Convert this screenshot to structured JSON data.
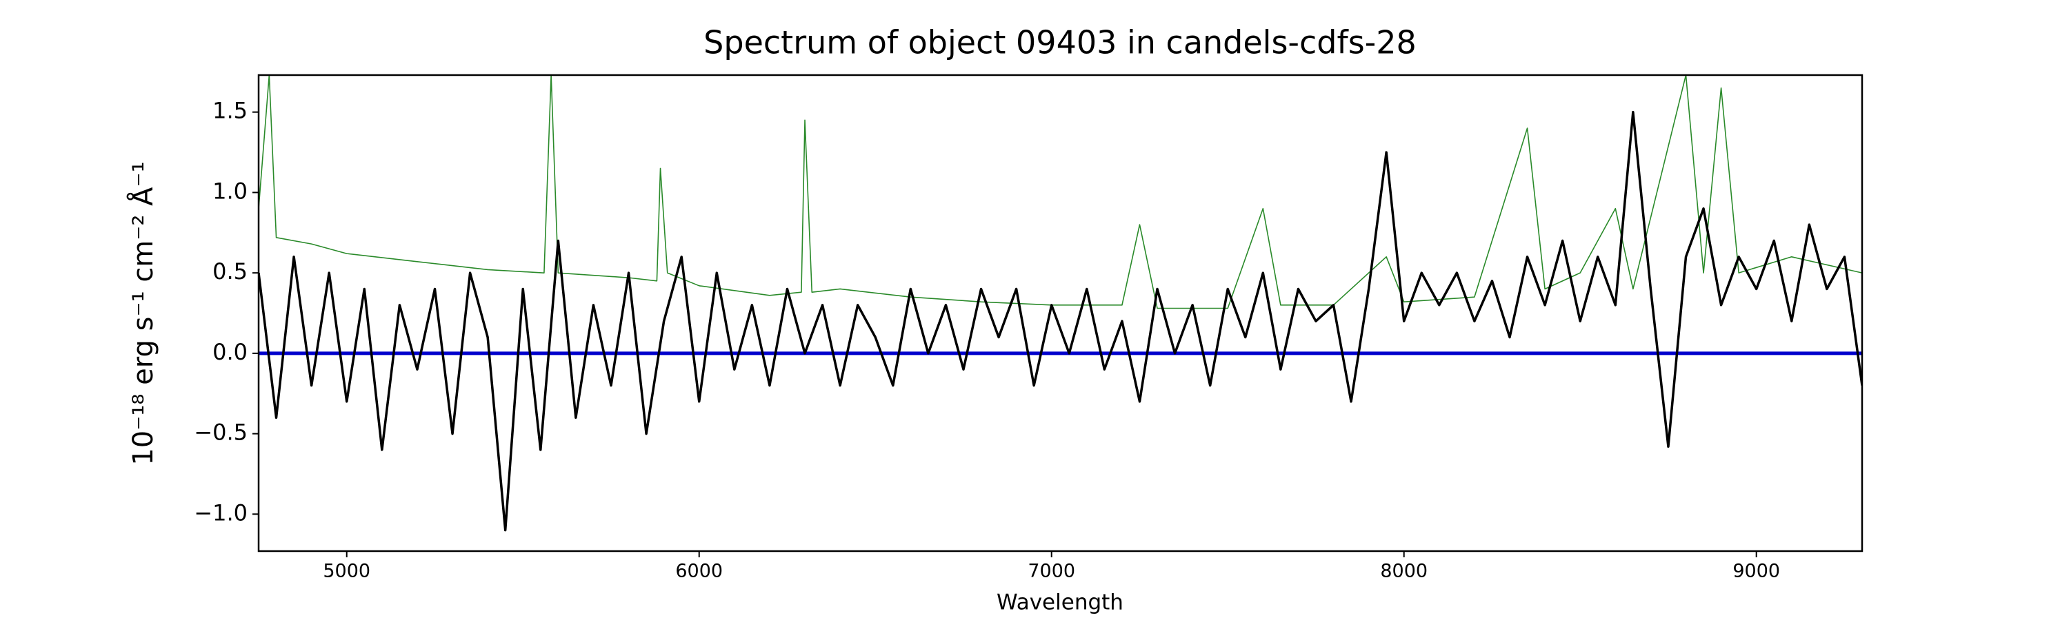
{
  "chart_data": {
    "type": "line",
    "title": "Spectrum of object 09403 in candels-cdfs-28",
    "x_label": "Wavelength",
    "y_label": "10⁻¹⁸ erg s⁻¹ cm⁻² Å⁻¹",
    "xlim": [
      4750,
      9300
    ],
    "ylim": [
      -1.23,
      1.73
    ],
    "xticks": [
      5000,
      6000,
      7000,
      8000,
      9000
    ],
    "yticks": [
      {
        "value": -1.0,
        "label": "−1.0"
      },
      {
        "value": -0.5,
        "label": "−0.5"
      },
      {
        "value": 0.0,
        "label": "0.0"
      },
      0.5,
      {
        "value": 1.0,
        "label": "1.0"
      },
      1.5
    ],
    "series": [
      {
        "color": "#2a8a2a",
        "width": 1.6,
        "x": [
          4750,
          4780,
          4800,
          4900,
          5000,
          5200,
          5400,
          5560,
          5580,
          5600,
          5800,
          5880,
          5890,
          5910,
          6000,
          6200,
          6290,
          6300,
          6320,
          6400,
          6600,
          6800,
          7000,
          7200,
          7250,
          7300,
          7500,
          7600,
          7650,
          7800,
          7950,
          8000,
          8200,
          8350,
          8400,
          8500,
          8600,
          8650,
          8800,
          8850,
          8900,
          8950,
          9100,
          9300
        ],
        "values": [
          0.9,
          1.73,
          0.72,
          0.68,
          0.62,
          0.57,
          0.52,
          0.5,
          1.73,
          0.5,
          0.47,
          0.45,
          1.15,
          0.5,
          0.42,
          0.36,
          0.38,
          1.45,
          0.38,
          0.4,
          0.35,
          0.32,
          0.3,
          0.3,
          0.8,
          0.28,
          0.28,
          0.9,
          0.3,
          0.3,
          0.6,
          0.32,
          0.35,
          1.4,
          0.4,
          0.5,
          0.9,
          0.4,
          1.73,
          0.5,
          1.65,
          0.5,
          0.6,
          0.5
        ]
      },
      {
        "color": "#0000cc",
        "width": 5,
        "x": [
          4750,
          9300
        ],
        "values": [
          0,
          0
        ]
      },
      {
        "color": "#000000",
        "width": 3.5,
        "x": [
          4750,
          4800,
          4850,
          4900,
          4950,
          5000,
          5050,
          5100,
          5150,
          5200,
          5250,
          5300,
          5350,
          5400,
          5450,
          5500,
          5550,
          5600,
          5650,
          5700,
          5750,
          5800,
          5850,
          5900,
          5950,
          6000,
          6050,
          6100,
          6150,
          6200,
          6250,
          6300,
          6350,
          6400,
          6450,
          6500,
          6550,
          6600,
          6650,
          6700,
          6750,
          6800,
          6850,
          6900,
          6950,
          7000,
          7050,
          7100,
          7150,
          7200,
          7250,
          7300,
          7350,
          7400,
          7450,
          7500,
          7550,
          7600,
          7650,
          7700,
          7750,
          7800,
          7850,
          7900,
          7950,
          8000,
          8050,
          8100,
          8150,
          8200,
          8250,
          8300,
          8350,
          8400,
          8450,
          8500,
          8550,
          8600,
          8650,
          8700,
          8750,
          8800,
          8850,
          8900,
          8950,
          9000,
          9050,
          9100,
          9150,
          9200,
          9250,
          9300
        ],
        "values": [
          0.5,
          -0.4,
          0.6,
          -0.2,
          0.5,
          -0.3,
          0.4,
          -0.6,
          0.3,
          -0.1,
          0.4,
          -0.5,
          0.5,
          0.1,
          -1.1,
          0.4,
          -0.6,
          0.7,
          -0.4,
          0.3,
          -0.2,
          0.5,
          -0.5,
          0.2,
          0.6,
          -0.3,
          0.5,
          -0.1,
          0.3,
          -0.2,
          0.4,
          0.0,
          0.3,
          -0.2,
          0.3,
          0.1,
          -0.2,
          0.4,
          0.0,
          0.3,
          -0.1,
          0.4,
          0.1,
          0.4,
          -0.2,
          0.3,
          0.0,
          0.4,
          -0.1,
          0.2,
          -0.3,
          0.4,
          0.0,
          0.3,
          -0.2,
          0.4,
          0.1,
          0.5,
          -0.1,
          0.4,
          0.2,
          0.3,
          -0.3,
          0.4,
          1.25,
          0.2,
          0.5,
          0.3,
          0.5,
          0.2,
          0.45,
          0.1,
          0.6,
          0.3,
          0.7,
          0.2,
          0.6,
          0.3,
          1.5,
          0.4,
          -0.58,
          0.6,
          0.9,
          0.3,
          0.6,
          0.4,
          0.7,
          0.2,
          0.8,
          0.4,
          0.6,
          -0.2
        ]
      }
    ]
  }
}
